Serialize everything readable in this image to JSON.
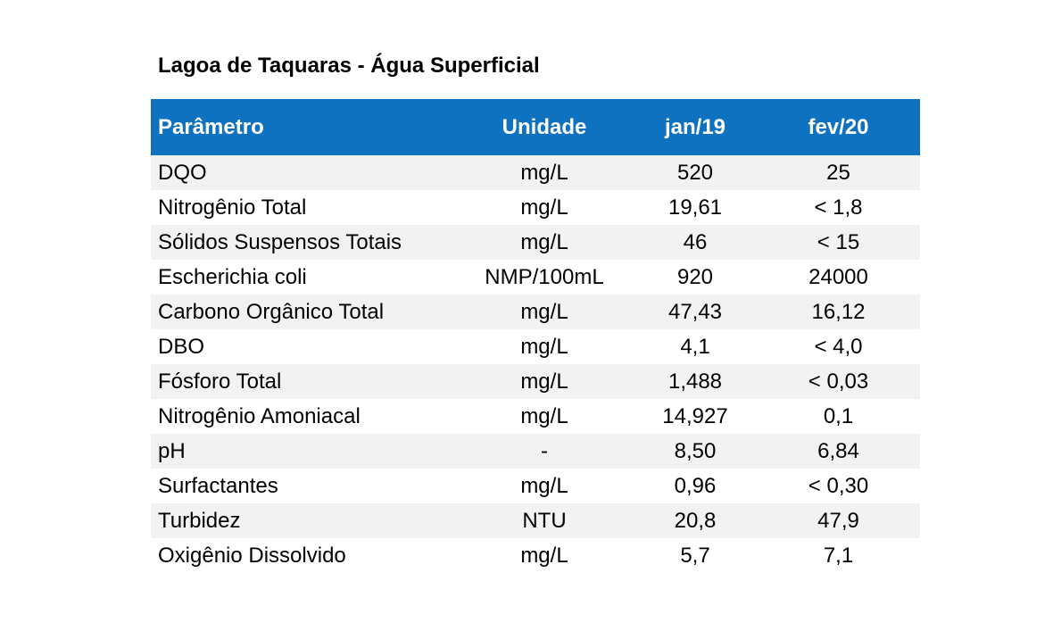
{
  "title": "Lagoa de Taquaras - Água Superficial",
  "table": {
    "headers": {
      "param": "Parâmetro",
      "unit": "Unidade",
      "jan": "jan/19",
      "fev": "fev/20"
    },
    "rows": [
      {
        "param": "DQO",
        "unit": "mg/L",
        "jan": "520",
        "fev": "25"
      },
      {
        "param": "Nitrogênio Total",
        "unit": "mg/L",
        "jan": "19,61",
        "fev": "< 1,8"
      },
      {
        "param": "Sólidos Suspensos Totais",
        "unit": "mg/L",
        "jan": "46",
        "fev": "< 15"
      },
      {
        "param": "Escherichia coli",
        "unit": "NMP/100mL",
        "jan": "920",
        "fev": "24000"
      },
      {
        "param": "Carbono Orgânico Total",
        "unit": "mg/L",
        "jan": "47,43",
        "fev": "16,12"
      },
      {
        "param": "DBO",
        "unit": "mg/L",
        "jan": "4,1",
        "fev": "< 4,0"
      },
      {
        "param": "Fósforo Total",
        "unit": "mg/L",
        "jan": "1,488",
        "fev": "< 0,03"
      },
      {
        "param": "Nitrogênio Amoniacal",
        "unit": "mg/L",
        "jan": "14,927",
        "fev": "0,1"
      },
      {
        "param": "pH",
        "unit": "-",
        "jan": "8,50",
        "fev": "6,84"
      },
      {
        "param": "Surfactantes",
        "unit": "mg/L",
        "jan": "0,96",
        "fev": "< 0,30"
      },
      {
        "param": "Turbidez",
        "unit": "NTU",
        "jan": "20,8",
        "fev": "47,9"
      },
      {
        "param": "Oxigênio Dissolvido",
        "unit": "mg/L",
        "jan": "5,7",
        "fev": "7,1"
      }
    ]
  },
  "colors": {
    "header_bg": "#0f72c0",
    "header_text": "#ffffff",
    "stripe_bg": "#f2f2f2"
  }
}
